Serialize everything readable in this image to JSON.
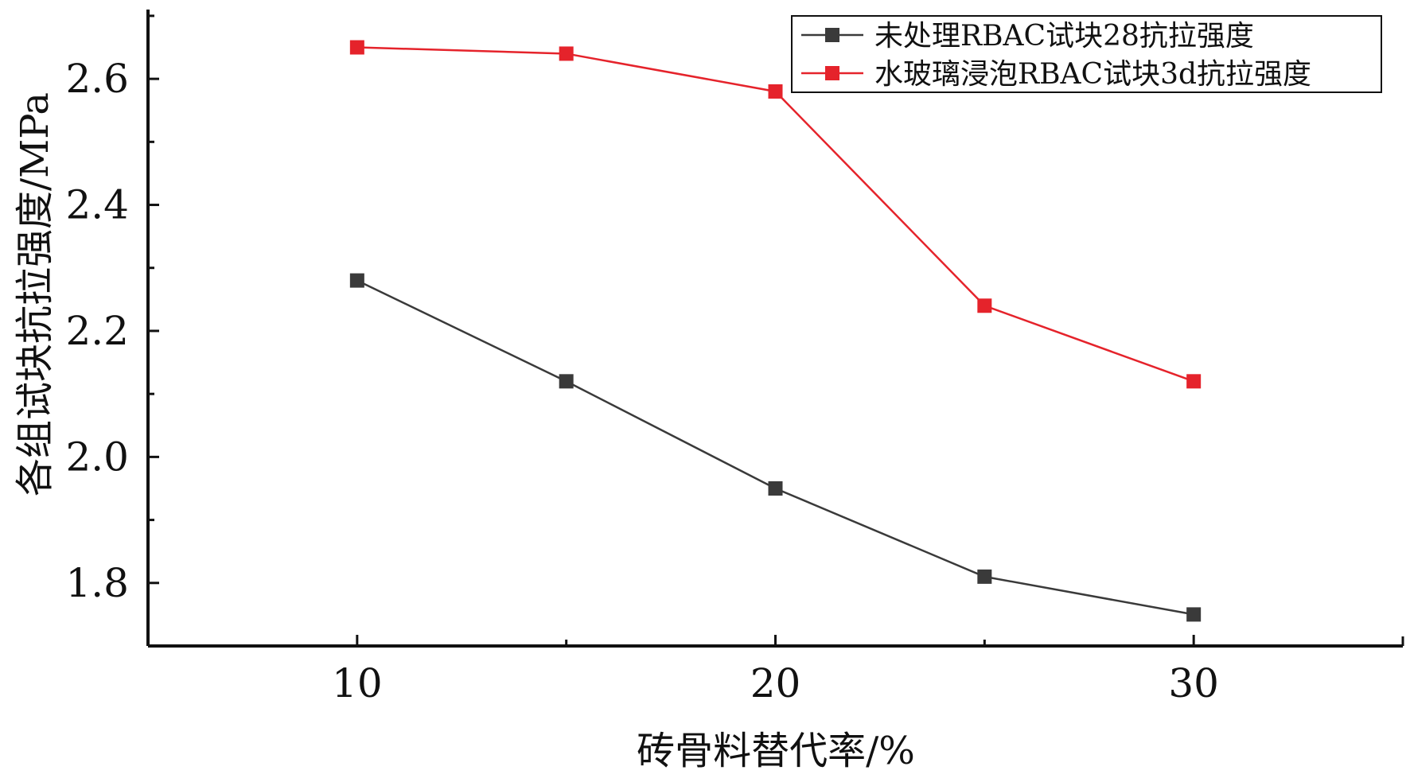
{
  "chart_data": {
    "type": "line",
    "xlabel": "砖骨料替代率/%",
    "ylabel": "各组试块抗拉强度/MPa",
    "xlim": [
      5,
      35
    ],
    "ylim": [
      1.7,
      2.71
    ],
    "x_ticks": [
      10,
      20,
      30
    ],
    "x_minor_ticks": [
      15,
      25
    ],
    "y_ticks": [
      1.8,
      2.0,
      2.2,
      2.4,
      2.6
    ],
    "y_tick_labels": [
      "1.8",
      "2.0",
      "2.2",
      "2.4",
      "2.6"
    ],
    "grid": false,
    "legend_position": "top-right",
    "x": [
      10,
      15,
      20,
      25,
      30
    ],
    "series": [
      {
        "name": "未处理RBAC试块28抗拉强度",
        "color": "#3a3a3a",
        "marker": "square",
        "values": [
          2.28,
          2.12,
          1.95,
          1.81,
          1.75
        ]
      },
      {
        "name": "水玻璃浸泡RBAC试块3d抗拉强度",
        "color": "#e5232b",
        "marker": "square",
        "values": [
          2.65,
          2.64,
          2.58,
          2.24,
          2.12
        ]
      }
    ]
  }
}
